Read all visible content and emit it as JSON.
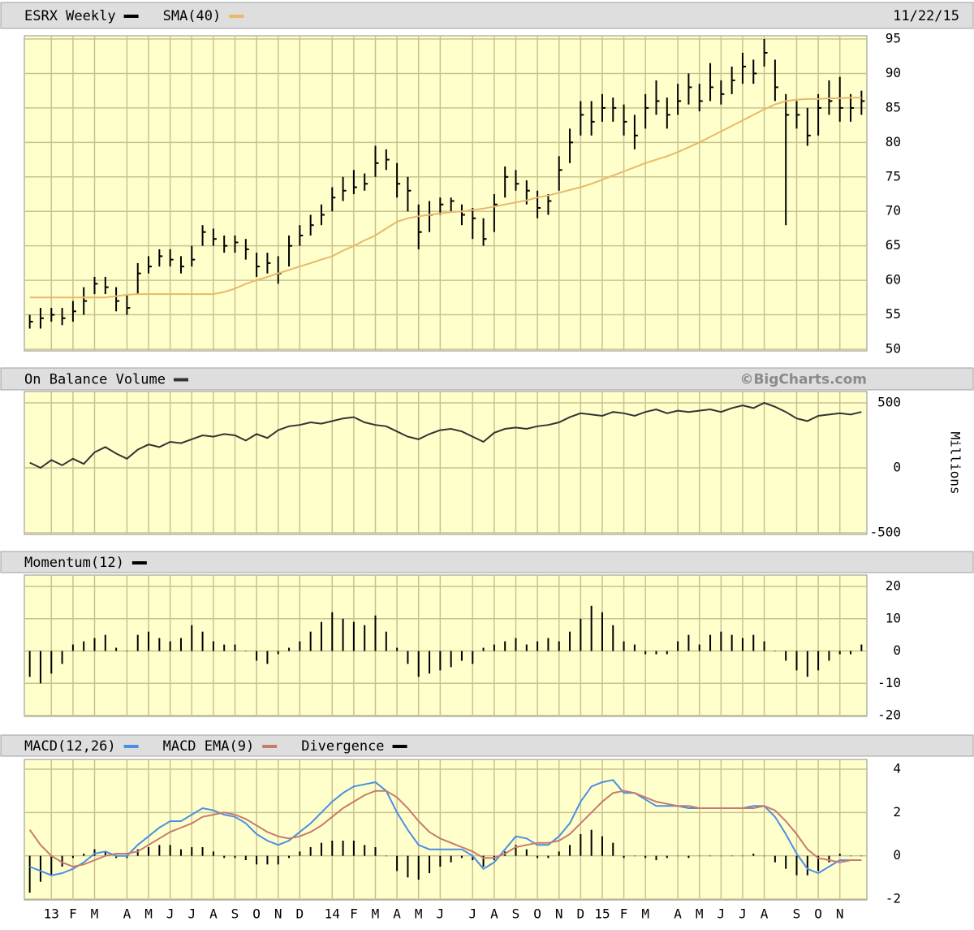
{
  "chart_data": [
    {
      "type": "ohlc",
      "date": "11/22/15",
      "ylim": [
        50,
        95
      ],
      "yticks": [
        50,
        55,
        60,
        65,
        70,
        75,
        80,
        85,
        90,
        95
      ],
      "grid": true,
      "series": [
        {
          "name": "ESRX Weekly",
          "type": "ohlc",
          "color": "#000000",
          "high": [
            55,
            56,
            56,
            56,
            57,
            59,
            60.5,
            60.5,
            59,
            58,
            62.5,
            63.5,
            64.5,
            64.5,
            63.5,
            65,
            68,
            67.5,
            66.5,
            66.5,
            66,
            64,
            64,
            63.5,
            66.5,
            68,
            69.5,
            71,
            73.5,
            75,
            76,
            75.5,
            79.5,
            79,
            77,
            75,
            71,
            71.5,
            72,
            72,
            71,
            70.5,
            69,
            72.5,
            76.5,
            76,
            74.5,
            73,
            72.5,
            78,
            82,
            86,
            86,
            87,
            86.5,
            85.5,
            84,
            87,
            89,
            86.5,
            88.5,
            90,
            88.5,
            91.5,
            89,
            91,
            93,
            92,
            95,
            92,
            87,
            86,
            85,
            87,
            89,
            89.5,
            87,
            87.5
          ],
          "low": [
            53,
            53,
            54,
            53.5,
            54,
            55,
            58,
            58,
            55.5,
            55,
            58,
            61,
            62,
            62,
            61,
            62,
            65,
            65,
            64,
            64,
            63,
            60.5,
            61,
            59.5,
            62,
            65,
            66.5,
            68,
            70,
            71.5,
            72.5,
            73,
            75,
            76,
            72,
            70,
            64.5,
            67,
            69.5,
            70,
            68,
            66,
            65,
            67,
            72,
            73,
            71,
            69,
            69.5,
            73,
            77,
            81,
            81,
            83,
            83,
            81,
            79,
            82,
            84,
            82,
            84,
            85.5,
            84.5,
            86,
            85.5,
            87,
            88.5,
            88.5,
            91,
            86,
            68,
            82,
            79.5,
            81,
            84,
            83,
            83,
            84
          ],
          "values": [
            54,
            54.5,
            55,
            54.5,
            55.5,
            57,
            59.5,
            59,
            57,
            56,
            61,
            62,
            63.5,
            63,
            62,
            63,
            67,
            66,
            65,
            65.5,
            64.5,
            62,
            62.5,
            61,
            65,
            66.5,
            68,
            69.5,
            72,
            73,
            73.5,
            74,
            77,
            77.5,
            74,
            73,
            67,
            69.5,
            71,
            71.5,
            69.5,
            69,
            66,
            71,
            75,
            74,
            73,
            70.5,
            71.5,
            76,
            80,
            84,
            83,
            85,
            85,
            83,
            81,
            85,
            86,
            84,
            86,
            88,
            86,
            88,
            87,
            89,
            91,
            90,
            93,
            88,
            84,
            84,
            81,
            85,
            86,
            85,
            85,
            86
          ]
        },
        {
          "name": "SMA(40)",
          "type": "line",
          "color": "#e8b96a",
          "values": [
            57.5,
            57.5,
            57.5,
            57.5,
            57.5,
            57.5,
            57.5,
            57.5,
            57.7,
            57.9,
            58,
            58,
            58,
            58,
            58,
            58,
            58,
            58,
            58.3,
            58.8,
            59.5,
            60,
            60.5,
            61,
            61.5,
            62,
            62.5,
            63,
            63.5,
            64.3,
            65,
            65.8,
            66.5,
            67.5,
            68.5,
            69,
            69.3,
            69.5,
            69.7,
            69.9,
            70,
            70.2,
            70.4,
            70.7,
            71,
            71.3,
            71.6,
            72,
            72.3,
            72.7,
            73.1,
            73.5,
            74,
            74.6,
            75.2,
            75.8,
            76.4,
            77,
            77.5,
            78,
            78.6,
            79.3,
            80,
            80.8,
            81.6,
            82.4,
            83.2,
            84,
            84.8,
            85.5,
            86,
            86.2,
            86.3,
            86.3,
            86.4,
            86.4,
            86.5,
            86.5
          ]
        }
      ]
    },
    {
      "type": "line",
      "credit": "©BigCharts.com",
      "y_label": "Millions",
      "ylim": [
        -500,
        500
      ],
      "yticks": [
        -500,
        0,
        500
      ],
      "grid": true,
      "series": [
        {
          "name": "On Balance Volume",
          "type": "line",
          "color": "#333333",
          "values": [
            40,
            0,
            60,
            20,
            70,
            30,
            120,
            160,
            110,
            70,
            140,
            180,
            160,
            200,
            190,
            220,
            250,
            240,
            260,
            250,
            210,
            260,
            230,
            290,
            320,
            330,
            350,
            340,
            360,
            380,
            390,
            350,
            330,
            320,
            280,
            240,
            220,
            260,
            290,
            300,
            280,
            240,
            200,
            270,
            300,
            310,
            300,
            320,
            330,
            350,
            390,
            420,
            410,
            400,
            430,
            420,
            400,
            430,
            450,
            420,
            440,
            430,
            440,
            450,
            430,
            460,
            480,
            460,
            500,
            470,
            430,
            380,
            360,
            400,
            410,
            420,
            410,
            430
          ]
        }
      ]
    },
    {
      "type": "bar",
      "ylim": [
        -20,
        20
      ],
      "yticks": [
        -20,
        -10,
        0,
        10,
        20
      ],
      "grid": true,
      "series": [
        {
          "name": "Momentum(12)",
          "type": "bar",
          "color": "#000000",
          "values": [
            -8,
            -10,
            -7,
            -4,
            2,
            3,
            4,
            5,
            1,
            0,
            5,
            6,
            4,
            3,
            4,
            8,
            6,
            3,
            2,
            2,
            0,
            -3,
            -4,
            -1,
            1,
            3,
            6,
            9,
            12,
            10,
            9,
            8,
            11,
            6,
            1,
            -4,
            -8,
            -7,
            -6,
            -5,
            -3,
            -4,
            1,
            2,
            3,
            4,
            2,
            3,
            4,
            3,
            6,
            10,
            14,
            12,
            8,
            3,
            2,
            -1,
            -1,
            -1,
            3,
            5,
            2,
            5,
            6,
            5,
            4,
            5,
            3,
            0,
            -3,
            -6,
            -8,
            -6,
            -3,
            -1,
            -1,
            2
          ]
        }
      ]
    },
    {
      "type": "macd",
      "ylim": [
        -2,
        4
      ],
      "yticks": [
        -2,
        0,
        2,
        4
      ],
      "grid": true,
      "categories": [
        null,
        null,
        "13",
        null,
        "F",
        null,
        "M",
        null,
        null,
        "A",
        null,
        "M",
        null,
        "J",
        null,
        "J",
        null,
        "A",
        null,
        "S",
        null,
        "O",
        null,
        "N",
        null,
        "D",
        null,
        null,
        "14",
        null,
        "F",
        null,
        "M",
        null,
        "A",
        null,
        "M",
        null,
        "J",
        null,
        null,
        "J",
        null,
        "A",
        null,
        "S",
        null,
        "O",
        null,
        "N",
        null,
        "D",
        null,
        "15",
        null,
        "F",
        null,
        "M",
        null,
        null,
        "A",
        null,
        "M",
        null,
        "J",
        null,
        "J",
        null,
        "A",
        null,
        null,
        "S",
        null,
        "O",
        null,
        "N",
        null,
        null
      ],
      "series": [
        {
          "name": "MACD(12,26)",
          "type": "line",
          "color": "#4a90e2",
          "values": [
            -0.5,
            -0.7,
            -0.9,
            -0.8,
            -0.6,
            -0.3,
            0.1,
            0.2,
            0,
            0,
            0.5,
            0.9,
            1.3,
            1.6,
            1.6,
            1.9,
            2.2,
            2.1,
            1.9,
            1.8,
            1.5,
            1,
            0.7,
            0.5,
            0.7,
            1.1,
            1.5,
            2,
            2.5,
            2.9,
            3.2,
            3.3,
            3.4,
            3,
            2,
            1.2,
            0.5,
            0.3,
            0.3,
            0.3,
            0.3,
            0,
            -0.6,
            -0.3,
            0.3,
            0.9,
            0.8,
            0.5,
            0.5,
            0.9,
            1.5,
            2.5,
            3.2,
            3.4,
            3.5,
            2.9,
            2.9,
            2.6,
            2.3,
            2.3,
            2.3,
            2.2,
            2.2,
            2.2,
            2.2,
            2.2,
            2.2,
            2.3,
            2.3,
            1.8,
            1,
            0.1,
            -0.6,
            -0.8,
            -0.5,
            -0.2,
            -0.2,
            -0.2
          ]
        },
        {
          "name": "MACD EMA(9)",
          "type": "line",
          "color": "#c87a6e",
          "values": [
            1.2,
            0.5,
            0,
            -0.3,
            -0.5,
            -0.4,
            -0.2,
            0,
            0.1,
            0.1,
            0.2,
            0.5,
            0.8,
            1.1,
            1.3,
            1.5,
            1.8,
            1.9,
            2,
            1.9,
            1.7,
            1.4,
            1.1,
            0.9,
            0.8,
            0.9,
            1.1,
            1.4,
            1.8,
            2.2,
            2.5,
            2.8,
            3,
            3,
            2.7,
            2.2,
            1.6,
            1.1,
            0.8,
            0.6,
            0.4,
            0.2,
            -0.1,
            -0.1,
            0.1,
            0.4,
            0.5,
            0.6,
            0.6,
            0.7,
            1,
            1.5,
            2,
            2.5,
            2.9,
            3,
            2.9,
            2.7,
            2.5,
            2.4,
            2.3,
            2.3,
            2.2,
            2.2,
            2.2,
            2.2,
            2.2,
            2.2,
            2.3,
            2.1,
            1.6,
            1,
            0.3,
            -0.1,
            -0.2,
            -0.3,
            -0.2,
            -0.2
          ]
        },
        {
          "name": "Divergence",
          "type": "bar",
          "color": "#000000",
          "values": [
            -1.7,
            -1.2,
            -0.9,
            -0.5,
            -0.1,
            0.1,
            0.3,
            0.2,
            -0.1,
            -0.1,
            0.3,
            0.4,
            0.5,
            0.5,
            0.3,
            0.4,
            0.4,
            0.2,
            -0.1,
            -0.1,
            -0.2,
            -0.4,
            -0.4,
            -0.4,
            -0.1,
            0.2,
            0.4,
            0.6,
            0.7,
            0.7,
            0.7,
            0.5,
            0.4,
            0,
            -0.7,
            -1,
            -1.1,
            -0.8,
            -0.5,
            -0.3,
            -0.1,
            -0.2,
            -0.5,
            -0.2,
            0.2,
            0.5,
            0.3,
            -0.1,
            -0.1,
            0.2,
            0.5,
            1,
            1.2,
            0.9,
            0.6,
            -0.1,
            0,
            -0.1,
            -0.2,
            -0.1,
            0,
            -0.1,
            0,
            0,
            0,
            0,
            0,
            0.1,
            0,
            -0.3,
            -0.6,
            -0.9,
            -0.9,
            -0.7,
            -0.3,
            0.1,
            0,
            0
          ]
        }
      ]
    }
  ]
}
